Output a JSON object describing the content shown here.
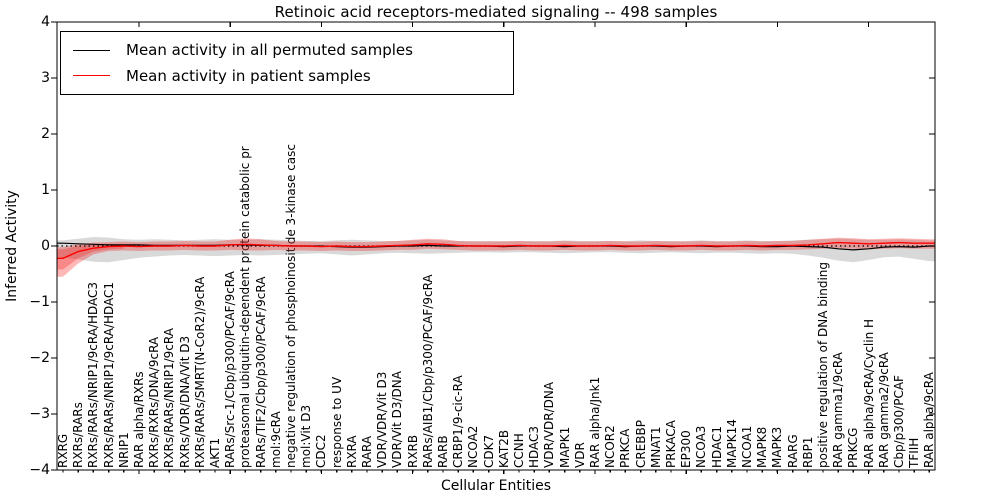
{
  "title": "Retinoic acid receptors-mediated signaling -- 498 samples",
  "axes": {
    "xlabel": "Cellular Entities",
    "ylabel": "Inferred Activity",
    "yticks": [
      "4",
      "3",
      "2",
      "1",
      "0",
      "−1",
      "−2",
      "−3",
      "−4"
    ],
    "ylim": [
      -4,
      4
    ]
  },
  "legend": {
    "position": "upper left",
    "items": [
      {
        "label": "Mean activity in all permuted samples",
        "color": "#000000"
      },
      {
        "label": "Mean activity in patient samples",
        "color": "#ff0000"
      }
    ]
  },
  "chart_data": {
    "type": "line",
    "title": "Retinoic acid receptors-mediated signaling -- 498 samples",
    "xlabel": "Cellular Entities",
    "ylabel": "Inferred Activity",
    "ylim": [
      -4,
      4
    ],
    "grid": false,
    "zero_line": true,
    "legend_position": "upper left",
    "categories": [
      "RXRG",
      "RXRs/RARs",
      "RXRs/RARs/NRIP1/9cRA/HDAC3",
      "RXRs/RARs/NRIP1/9cRA/HDAC1",
      "NRIP1",
      "RAR alpha/RXRs",
      "RXRs/RXRs/DNA/9cRA",
      "RXRs/RARs/NRIP1/9cRA",
      "RXRs/VDR/DNA/Vit D3",
      "RXRs/RARs/SMRT(N-CoR2)/9cRA",
      "AKT1",
      "RARs/Src-1/Cbp/p300/PCAF/9cRA",
      "proteasomal ubiquitin-dependent protein catabolic pr",
      "RARs/TIF2/Cbp/p300/PCAF/9cRA",
      "mol:9cRA",
      "negative regulation of phosphoinositide 3-kinase casc",
      "mol:Vit D3",
      "CDC2",
      "response to UV",
      "RXRA",
      "RARA",
      "VDR/VDR/Vit D3",
      "VDR/Vit D3/DNA",
      "RXRB",
      "RARs/AIB1/Cbp/p300/PCAF/9cRA",
      "RARB",
      "CRBP1/9-cic-RA",
      "NCOA2",
      "CDK7",
      "KAT2B",
      "CCNH",
      "HDAC3",
      "VDR/VDR/DNA",
      "MAPK1",
      "VDR",
      "RAR alpha/Jnk1",
      "NCOR2",
      "PRKCA",
      "CREBBP",
      "MNAT1",
      "PRKACA",
      "EP300",
      "NCOA3",
      "HDAC1",
      "MAPK14",
      "NCOA1",
      "MAPK8",
      "MAPK3",
      "RARG",
      "RBP1",
      "positive regulation of DNA binding",
      "RAR gamma1/9cRA",
      "PRKCG",
      "RAR alpha/9cRA/Cyclin H",
      "RAR gamma2/9cRA",
      "Cbp/p300/PCAF",
      "TFIIH",
      "RAR alpha/9cRA"
    ],
    "series": [
      {
        "name": "Mean activity in all permuted samples",
        "color": "#000000",
        "width": 1.2,
        "values": [
          0.05,
          0.04,
          0.03,
          0.02,
          0.02,
          0.02,
          0.01,
          0.01,
          0.01,
          0.01,
          0.01,
          0.02,
          0.02,
          0.01,
          0.01,
          0.0,
          0.0,
          0.0,
          -0.01,
          -0.02,
          -0.02,
          -0.01,
          0.0,
          0.0,
          0.01,
          0.0,
          0.0,
          0.0,
          0.0,
          -0.01,
          0.0,
          0.0,
          0.0,
          -0.01,
          0.0,
          0.0,
          0.0,
          -0.01,
          0.0,
          0.0,
          -0.01,
          0.0,
          0.0,
          -0.01,
          0.0,
          0.0,
          -0.01,
          -0.01,
          0.0,
          -0.01,
          -0.02,
          -0.05,
          -0.07,
          -0.05,
          -0.02,
          -0.01,
          -0.02,
          0.0
        ]
      },
      {
        "name": "Mean activity in patient samples",
        "color": "#ff0000",
        "width": 1.4,
        "values": [
          -0.22,
          -0.1,
          -0.04,
          -0.01,
          0.0,
          -0.01,
          0.0,
          0.0,
          0.01,
          0.0,
          0.0,
          0.02,
          0.03,
          0.02,
          0.01,
          0.0,
          0.0,
          -0.01,
          0.0,
          -0.01,
          -0.01,
          0.0,
          0.01,
          0.02,
          0.04,
          0.03,
          0.01,
          0.0,
          0.0,
          0.0,
          0.01,
          0.0,
          0.0,
          0.01,
          0.0,
          0.0,
          0.01,
          0.0,
          0.0,
          0.01,
          0.0,
          0.0,
          0.01,
          0.0,
          0.0,
          0.01,
          0.0,
          0.01,
          0.01,
          0.02,
          0.04,
          0.06,
          0.05,
          0.04,
          0.05,
          0.06,
          0.05,
          0.05
        ]
      }
    ],
    "bands": [
      {
        "name": "permuted samples std band",
        "color": "rgba(130,130,130,0.30)",
        "start": 0,
        "upper": [
          0.1,
          0.13,
          0.16,
          0.15,
          0.12,
          0.11,
          0.12,
          0.11,
          0.1,
          0.11,
          0.12,
          0.11,
          0.11,
          0.12,
          0.11,
          0.1,
          0.09,
          0.09,
          0.1,
          0.11,
          0.1,
          0.09,
          0.09,
          0.1,
          0.11,
          0.1,
          0.09,
          0.09,
          0.09,
          0.09,
          0.09,
          0.09,
          0.09,
          0.1,
          0.09,
          0.09,
          0.09,
          0.09,
          0.1,
          0.09,
          0.09,
          0.09,
          0.1,
          0.09,
          0.09,
          0.1,
          0.09,
          0.09,
          0.1,
          0.11,
          0.12,
          0.13,
          0.12,
          0.11,
          0.11,
          0.12,
          0.11,
          0.1
        ],
        "lower": [
          -0.2,
          -0.24,
          -0.28,
          -0.29,
          -0.25,
          -0.21,
          -0.19,
          -0.17,
          -0.16,
          -0.17,
          -0.18,
          -0.17,
          -0.16,
          -0.17,
          -0.16,
          -0.15,
          -0.14,
          -0.13,
          -0.15,
          -0.17,
          -0.15,
          -0.13,
          -0.12,
          -0.13,
          -0.14,
          -0.13,
          -0.12,
          -0.11,
          -0.11,
          -0.12,
          -0.11,
          -0.11,
          -0.12,
          -0.13,
          -0.12,
          -0.11,
          -0.11,
          -0.12,
          -0.13,
          -0.12,
          -0.11,
          -0.12,
          -0.13,
          -0.12,
          -0.12,
          -0.13,
          -0.14,
          -0.13,
          -0.14,
          -0.17,
          -0.21,
          -0.26,
          -0.29,
          -0.25,
          -0.2,
          -0.19,
          -0.23,
          -0.27
        ]
      },
      {
        "name": "patient samples std band",
        "color": "rgba(255,0,0,0.28)",
        "start": 0,
        "upper": [
          -0.02,
          0.03,
          0.06,
          0.07,
          0.08,
          0.07,
          0.08,
          0.08,
          0.09,
          0.08,
          0.08,
          0.11,
          0.14,
          0.12,
          0.09,
          0.08,
          0.08,
          0.07,
          0.08,
          0.07,
          0.07,
          0.08,
          0.09,
          0.11,
          0.13,
          0.12,
          0.09,
          0.08,
          0.08,
          0.08,
          0.09,
          0.08,
          0.08,
          0.09,
          0.08,
          0.08,
          0.09,
          0.08,
          0.08,
          0.09,
          0.08,
          0.08,
          0.09,
          0.08,
          0.08,
          0.09,
          0.08,
          0.09,
          0.09,
          0.11,
          0.13,
          0.15,
          0.14,
          0.12,
          0.13,
          0.14,
          0.13,
          0.12
        ],
        "lower": [
          -0.55,
          -0.31,
          -0.15,
          -0.09,
          -0.08,
          -0.09,
          -0.08,
          -0.08,
          -0.07,
          -0.08,
          -0.08,
          -0.07,
          -0.08,
          -0.08,
          -0.07,
          -0.08,
          -0.08,
          -0.09,
          -0.08,
          -0.09,
          -0.09,
          -0.08,
          -0.07,
          -0.07,
          -0.05,
          -0.06,
          -0.07,
          -0.08,
          -0.08,
          -0.08,
          -0.07,
          -0.08,
          -0.08,
          -0.07,
          -0.08,
          -0.08,
          -0.07,
          -0.08,
          -0.08,
          -0.07,
          -0.08,
          -0.08,
          -0.07,
          -0.08,
          -0.08,
          -0.07,
          -0.08,
          -0.07,
          -0.07,
          -0.06,
          -0.05,
          -0.04,
          -0.05,
          -0.06,
          -0.05,
          -0.04,
          -0.05,
          -0.05
        ]
      },
      {
        "name": "patient samples inner band (left)",
        "color": "rgba(235,30,30,0.30)",
        "start": 0,
        "upper": [
          -0.06,
          0.0,
          0.02,
          0.03,
          0.03
        ],
        "lower": [
          -0.42,
          -0.22,
          -0.1,
          -0.06,
          -0.05
        ]
      }
    ]
  }
}
